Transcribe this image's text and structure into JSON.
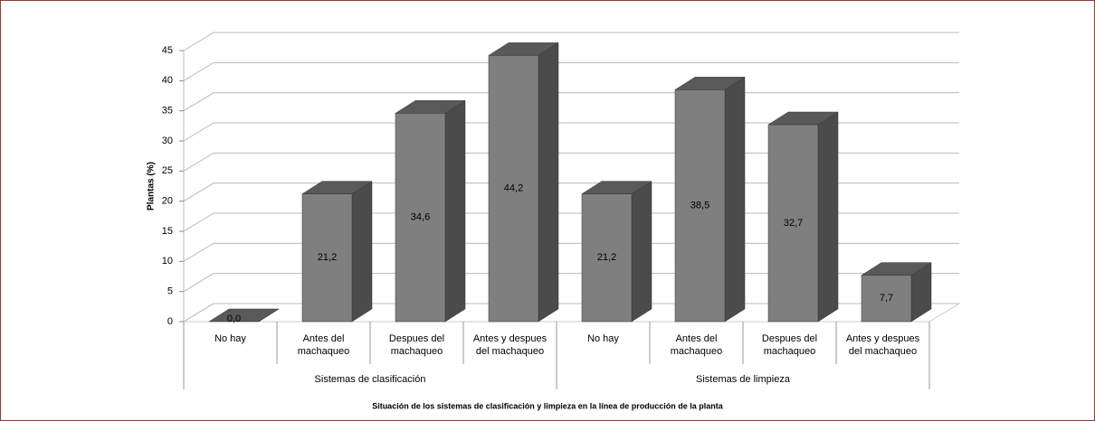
{
  "chart_data": {
    "type": "bar3d",
    "y_label": "Plantas (%)",
    "x_label": "Situación de los sistemas de clasificación y limpieza en la línea de producción de la planta",
    "groups": [
      "Sistemas de clasificación",
      "Sistemas de limpieza"
    ],
    "categories": [
      "No hay",
      "Antes del machaqueo",
      "Despues del machaqueo",
      "Antes y despues del machaqueo",
      "No hay",
      "Antes del machaqueo",
      "Despues del machaqueo",
      "Antes y despues del machaqueo"
    ],
    "values": [
      0.0,
      21.2,
      34.6,
      44.2,
      21.2,
      38.5,
      32.7,
      7.7
    ],
    "value_labels": [
      "0,0",
      "21,2",
      "34,6",
      "44,2",
      "21,2",
      "38,5",
      "32,7",
      "7,7"
    ],
    "color": "#7f7f7f",
    "ylim": [
      0,
      45
    ],
    "yticks": [
      0,
      5,
      10,
      15,
      20,
      25,
      30,
      35,
      40,
      45
    ],
    "grid": true
  }
}
